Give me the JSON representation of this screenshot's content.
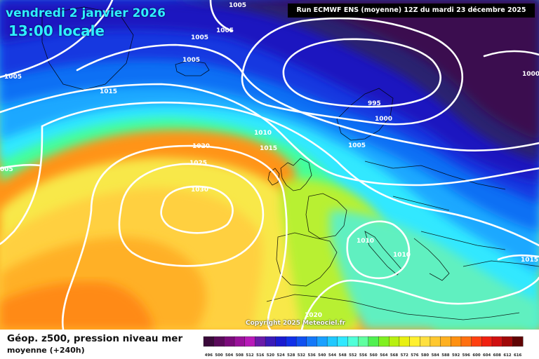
{
  "header": {
    "date": "vendredi 2 janvier 2026",
    "time": "13:00 locale",
    "run_info": "Run ECMWF ENS (moyenne) 12Z du mardi 23 décembre 2025"
  },
  "copyright": "Copyright 2025 Meteociel.fr",
  "legend": {
    "title": "Géop. z500, pression niveau mer",
    "subtitle": "moyenne   (+240h)",
    "scale_values": [
      "496",
      "500",
      "504",
      "508",
      "512",
      "516",
      "520",
      "524",
      "528",
      "532",
      "536",
      "540",
      "544",
      "548",
      "552",
      "556",
      "560",
      "564",
      "568",
      "572",
      "576",
      "580",
      "584",
      "588",
      "592",
      "596",
      "600",
      "604",
      "608",
      "612",
      "616"
    ],
    "scale_colors": [
      "#3a0a3a",
      "#5a0a5a",
      "#7a0a7a",
      "#9a109a",
      "#b818b8",
      "#6a1aa8",
      "#3a1ab8",
      "#1a1ad0",
      "#1030e8",
      "#1050f0",
      "#1478f8",
      "#1aa0ff",
      "#20c8ff",
      "#30e8ff",
      "#50ffd8",
      "#60ffa0",
      "#50f050",
      "#80f020",
      "#b8f010",
      "#e8f010",
      "#fff030",
      "#ffe040",
      "#ffc830",
      "#ffb020",
      "#ff9010",
      "#ff7010",
      "#ff4010",
      "#f02010",
      "#d01010",
      "#a00808",
      "#600404"
    ]
  },
  "isobar_labels": {
    "1030": "1030",
    "1025": "1025",
    "1020_a": "1020",
    "1020_b": "1020",
    "1015_a": "1015",
    "1015_b": "1015",
    "1015_c": "1015",
    "1010_a": "1010",
    "1010_b": "1010",
    "1010_c": "1010",
    "1005_a": "1005",
    "1005_b": "1005",
    "1005_c": "1005",
    "1005_d": "1005",
    "1005_e": "1005",
    "1005_f": "1005",
    "1000_a": "1000",
    "1000_b": "1000",
    "995": "995",
    "005": "005"
  }
}
